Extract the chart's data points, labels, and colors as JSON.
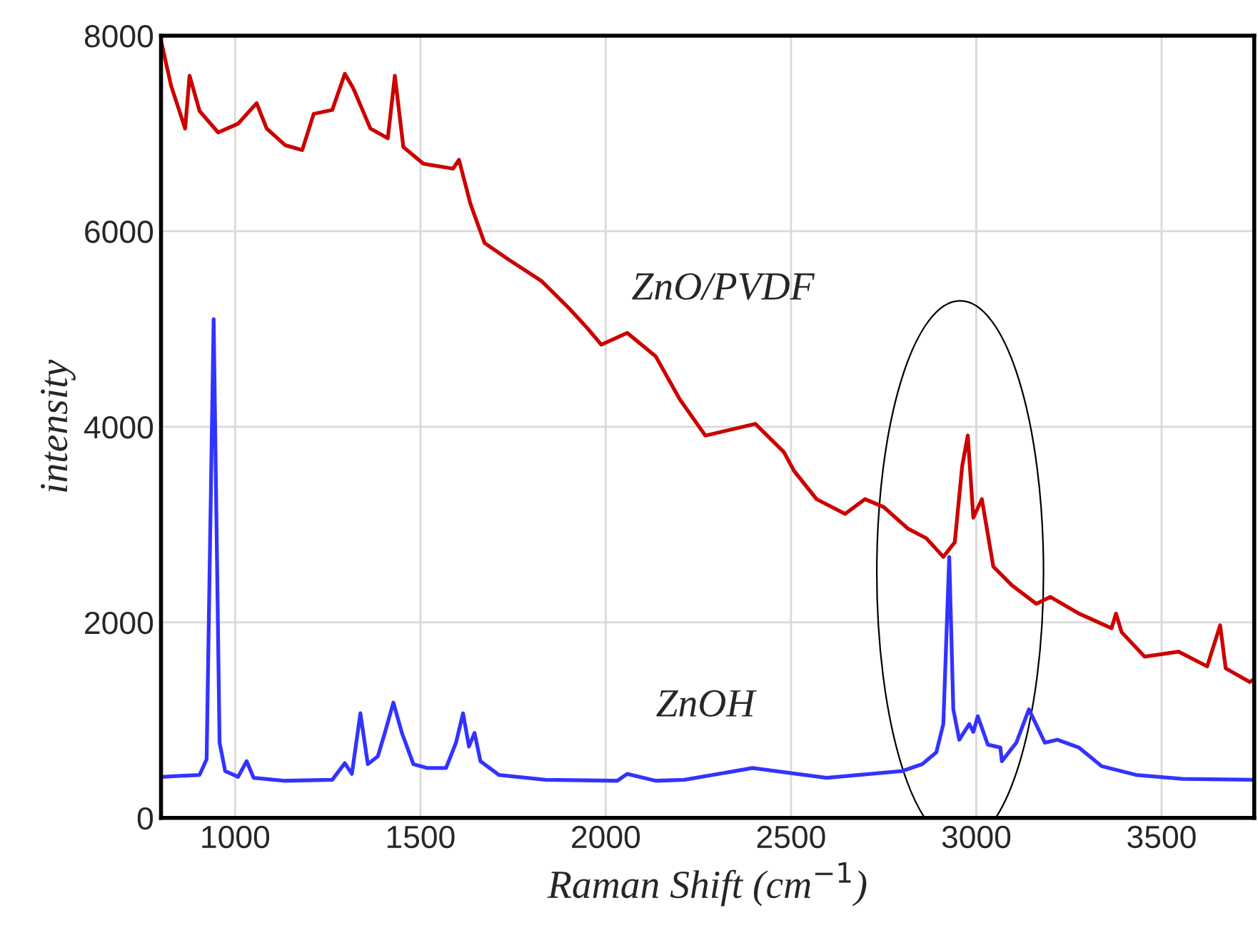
{
  "chart_data": {
    "type": "line",
    "xlabel": "Raman Shift (cm$^{−1}$)",
    "ylabel": "intensity",
    "xlim": [
      800,
      3750
    ],
    "ylim": [
      0,
      8000
    ],
    "xticks": [
      1000,
      1500,
      2000,
      2500,
      3000,
      3500
    ],
    "yticks": [
      0,
      2000,
      4000,
      6000,
      8000
    ],
    "grid": true,
    "marker": "none",
    "line_style": "solid",
    "series": [
      {
        "name": "ZnO/PVDF",
        "color": "#cc0000",
        "x": [
          800,
          827,
          865,
          877,
          904,
          954,
          1008,
          1058,
          1085,
          1135,
          1181,
          1212,
          1262,
          1296,
          1319,
          1365,
          1412,
          1431,
          1454,
          1508,
          1588,
          1604,
          1635,
          1673,
          1738,
          1827,
          1904,
          1950,
          1988,
          2058,
          2135,
          2200,
          2269,
          2404,
          2481,
          2508,
          2569,
          2646,
          2700,
          2750,
          2815,
          2865,
          2911,
          2942,
          2962,
          2977,
          2992,
          3015,
          3046,
          3096,
          3162,
          3200,
          3277,
          3365,
          3377,
          3392,
          3454,
          3546,
          3623,
          3658,
          3673,
          3738,
          3750
        ],
        "values": [
          7950,
          7490,
          7050,
          7590,
          7230,
          7010,
          7100,
          7310,
          7050,
          6880,
          6830,
          7200,
          7240,
          7610,
          7460,
          7050,
          6950,
          7590,
          6860,
          6690,
          6640,
          6730,
          6280,
          5880,
          5710,
          5490,
          5200,
          5010,
          4840,
          4960,
          4720,
          4280,
          3910,
          4030,
          3740,
          3550,
          3260,
          3110,
          3260,
          3180,
          2960,
          2860,
          2670,
          2820,
          3600,
          3910,
          3070,
          3260,
          2570,
          2380,
          2190,
          2260,
          2090,
          1940,
          2090,
          1900,
          1650,
          1700,
          1550,
          1970,
          1530,
          1390,
          1420
        ]
      },
      {
        "name": "ZnOH",
        "color": "#3333ff",
        "x": [
          800,
          904,
          923,
          942,
          958,
          973,
          1008,
          1031,
          1050,
          1135,
          1262,
          1296,
          1315,
          1338,
          1358,
          1385,
          1404,
          1427,
          1450,
          1481,
          1519,
          1569,
          1596,
          1615,
          1631,
          1646,
          1662,
          1712,
          1838,
          2031,
          2058,
          2135,
          2212,
          2396,
          2596,
          2800,
          2854,
          2892,
          2911,
          2927,
          2938,
          2954,
          2981,
          2992,
          3004,
          3031,
          3065,
          3069,
          3108,
          3142,
          3185,
          3219,
          3277,
          3338,
          3431,
          3558,
          3750
        ],
        "values": [
          420,
          440,
          600,
          5100,
          770,
          480,
          420,
          580,
          410,
          380,
          390,
          560,
          450,
          1070,
          550,
          630,
          870,
          1180,
          870,
          550,
          510,
          510,
          770,
          1070,
          730,
          870,
          580,
          440,
          390,
          380,
          450,
          380,
          390,
          510,
          410,
          480,
          550,
          670,
          960,
          2670,
          1110,
          800,
          960,
          880,
          1040,
          750,
          720,
          580,
          770,
          1110,
          770,
          800,
          720,
          530,
          440,
          400,
          390
        ]
      }
    ]
  }
}
